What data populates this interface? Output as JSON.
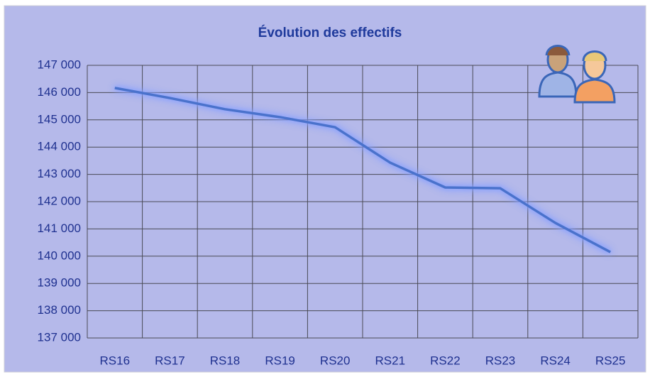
{
  "chart_data": {
    "type": "line",
    "title": "Évolution des effectifs",
    "categories": [
      "RS16",
      "RS17",
      "RS18",
      "RS19",
      "RS20",
      "RS21",
      "RS22",
      "RS23",
      "RS24",
      "RS25"
    ],
    "values": [
      146170,
      145800,
      145390,
      145100,
      144730,
      143430,
      142520,
      142490,
      141220,
      140150
    ],
    "color": "#4a72cc",
    "ylim": [
      137000,
      147000
    ],
    "yticks": [
      {
        "value": 137000,
        "label": "137 000"
      },
      {
        "value": 138000,
        "label": "138 000"
      },
      {
        "value": 139000,
        "label": "139 000"
      },
      {
        "value": 140000,
        "label": "140 000"
      },
      {
        "value": 141000,
        "label": "141 000"
      },
      {
        "value": 142000,
        "label": "142 000"
      },
      {
        "value": 143000,
        "label": "143 000"
      },
      {
        "value": 144000,
        "label": "144 000"
      },
      {
        "value": 145000,
        "label": "145 000"
      },
      {
        "value": 146000,
        "label": "146 000"
      },
      {
        "value": 147000,
        "label": "147 000"
      }
    ],
    "grid": true
  }
}
